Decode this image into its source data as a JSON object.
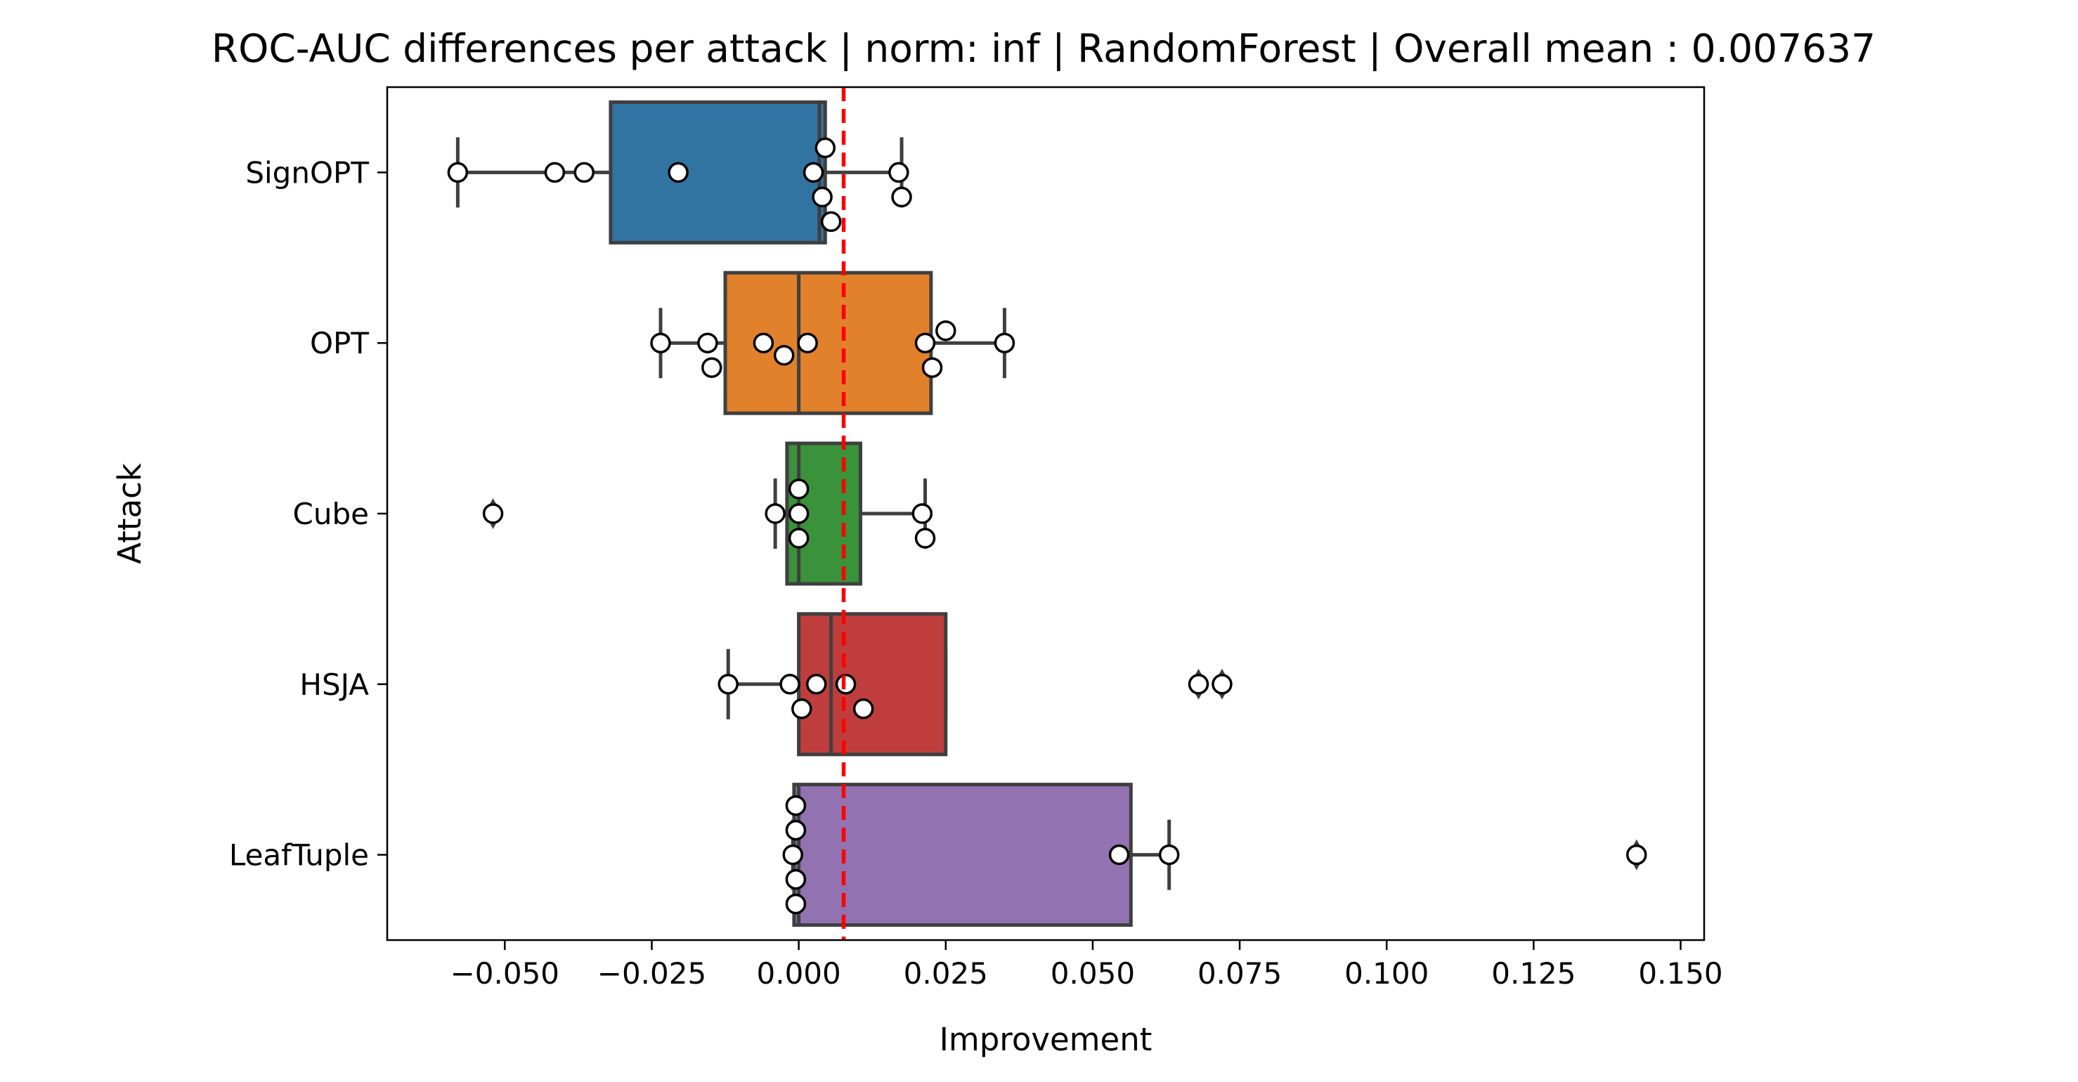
{
  "chart_data": {
    "type": "box",
    "orientation": "horizontal",
    "title": "ROC-AUC differences per attack | norm: inf | RandomForest | Overall mean : 0.007637",
    "xlabel": "Improvement",
    "ylabel": "Attack",
    "xlim": [
      -0.07,
      0.154
    ],
    "xticks": [
      -0.05,
      -0.025,
      0.0,
      0.025,
      0.05,
      0.075,
      0.1,
      0.125,
      0.15
    ],
    "xtick_labels": [
      "−0.050",
      "−0.025",
      "0.000",
      "0.025",
      "0.050",
      "0.075",
      "0.100",
      "0.125",
      "0.150"
    ],
    "categories": [
      "SignOPT",
      "OPT",
      "Cube",
      "HSJA",
      "LeafTuple"
    ],
    "mean_line": {
      "value": 0.007637,
      "color": "#ff0000",
      "style": "dashed"
    },
    "grid": false,
    "series": [
      {
        "category": "SignOPT",
        "color": "#3274a1",
        "whisker_low": -0.058,
        "q1": -0.032,
        "median": 0.0035,
        "q3": 0.0045,
        "whisker_high": 0.0175,
        "outliers": [],
        "points": [
          -0.058,
          -0.0415,
          -0.0365,
          -0.0205,
          0.0025,
          0.004,
          0.0045,
          0.0055,
          0.017,
          0.0175
        ]
      },
      {
        "category": "OPT",
        "color": "#e1812c",
        "whisker_low": -0.0235,
        "q1": -0.0125,
        "median": 0.0,
        "q3": 0.0225,
        "whisker_high": 0.035,
        "outliers": [],
        "points": [
          -0.0235,
          -0.0155,
          -0.0148,
          -0.006,
          -0.0025,
          0.0015,
          0.0215,
          0.0227,
          0.025,
          0.035
        ]
      },
      {
        "category": "Cube",
        "color": "#3a923a",
        "whisker_low": -0.004,
        "q1": -0.002,
        "median": 0.0,
        "q3": 0.0105,
        "whisker_high": 0.0215,
        "outliers": [
          -0.052
        ],
        "points": [
          -0.052,
          -0.004,
          0.0,
          0.0,
          0.0,
          0.021,
          0.0215
        ]
      },
      {
        "category": "HSJA",
        "color": "#c03d3e",
        "whisker_low": -0.012,
        "q1": 0.0,
        "median": 0.0055,
        "q3": 0.025,
        "whisker_high": 0.025,
        "outliers": [
          0.068,
          0.072
        ],
        "points": [
          -0.012,
          -0.0015,
          0.0005,
          0.003,
          0.008,
          0.011,
          0.068,
          0.072
        ]
      },
      {
        "category": "LeafTuple",
        "color": "#9372b2",
        "whisker_low": -0.001,
        "q1": -0.0008,
        "median": 0.0,
        "q3": 0.0565,
        "whisker_high": 0.063,
        "outliers": [
          0.1425
        ],
        "points": [
          -0.0005,
          -0.0005,
          -0.001,
          -0.0005,
          -0.0005,
          0.0545,
          0.063,
          0.1425
        ]
      }
    ]
  }
}
